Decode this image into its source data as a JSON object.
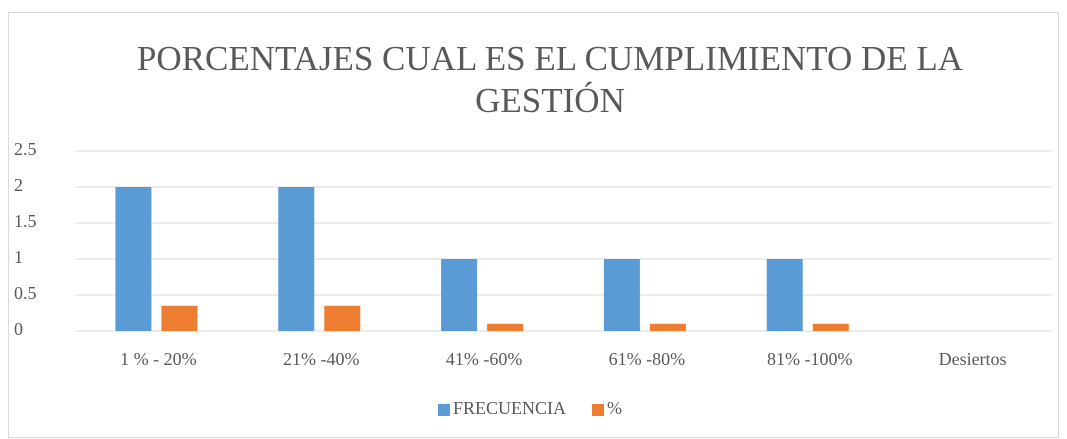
{
  "chart_data": {
    "type": "bar",
    "title": "PORCENTAJES CUAL ES EL CUMPLIMIENTO DE LA GESTIÓN",
    "categories": [
      "1 % - 20%",
      "21% -40%",
      "41% -60%",
      "61% -80%",
      "81% -100%",
      "Desiertos"
    ],
    "series": [
      {
        "name": "FRECUENCIA",
        "color": "#5b9bd5",
        "values": [
          2,
          2,
          1,
          1,
          1,
          0
        ]
      },
      {
        "name": "%",
        "color": "#ed7d31",
        "values": [
          0.35,
          0.35,
          0.1,
          0.1,
          0.1,
          0
        ]
      }
    ],
    "ylim": [
      0,
      2.5
    ],
    "yticks": [
      0,
      0.5,
      1,
      1.5,
      2,
      2.5
    ],
    "grid": true,
    "legend": "bottom"
  }
}
